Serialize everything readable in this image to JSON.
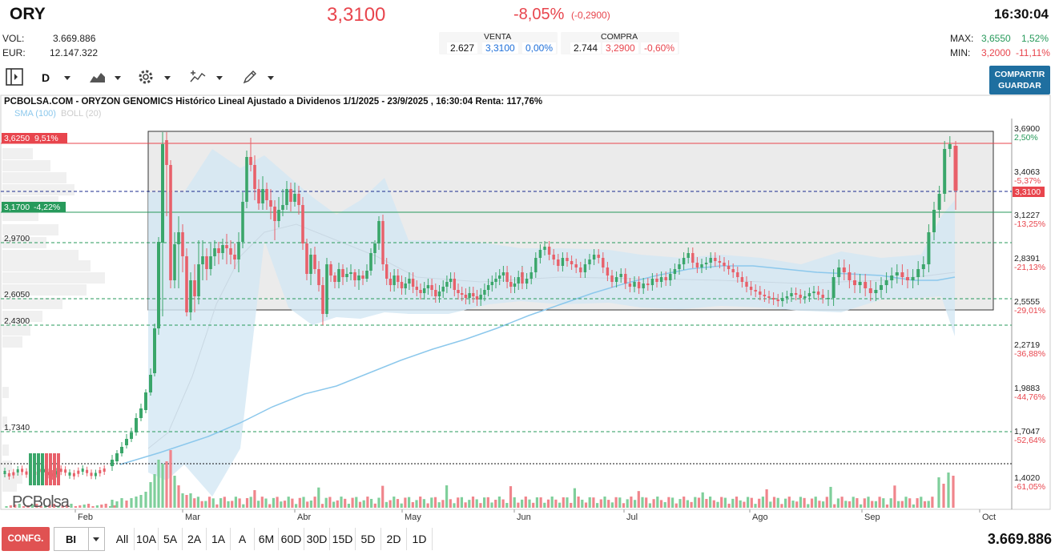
{
  "header": {
    "ticker": "ORY",
    "price": "3,3100",
    "change_pct": "-8,05%",
    "change_abs": "(-0,2900)",
    "time": "16:30:04",
    "vol_label": "VOL:",
    "vol_value": "3.669.886",
    "eur_label": "EUR:",
    "eur_value": "12.147.322",
    "max_label": "MAX:",
    "max_value": "3,6550",
    "max_pct": "1,52%",
    "min_label": "MIN:",
    "min_value": "3,2000",
    "min_pct": "-11,11%"
  },
  "quotes": {
    "venta_label": "VENTA",
    "venta_qty": "2.627",
    "venta_price": "3,3100",
    "venta_pct": "0,00%",
    "compra_label": "COMPRA",
    "compra_qty": "2.744",
    "compra_price": "3,2900",
    "compra_pct": "-0,60%"
  },
  "toolbar": {
    "period": "D",
    "share_line1": "COMPARTIR",
    "share_line2": "GUARDAR",
    "icons": [
      "panel-toggle-icon",
      "area-chart-icon",
      "gear-icon",
      "indicators-icon",
      "draw-pencil-icon"
    ]
  },
  "chart": {
    "title": "PCBOLSA.COM - ORYZON GENOMICS Histórico Lineal Ajustado a Dividenos 1/1/2025 - 23/9/2025 , 16:30:04 Renta: 117,76%",
    "legend_sma": "SMA (100)",
    "legend_boll": "BOLL (20)",
    "brand": "PCBolsa",
    "high_tag": "3,6250",
    "high_tag_pct": "9,51%",
    "low_tag": "3,1700",
    "low_tag_pct": "-4,22%",
    "left_levels": [
      "2,9700",
      "2,6050",
      "2,4300",
      "1,7340"
    ],
    "last_price_tag": "3,3100",
    "right_axis": [
      {
        "price": "3,6900",
        "pct": "2,50%"
      },
      {
        "price": "3,4063",
        "pct": "-5,37%"
      },
      {
        "price": "3,1227",
        "pct": "-13,25%"
      },
      {
        "price": "2,8391",
        "pct": "-21,13%"
      },
      {
        "price": "2,5555",
        "pct": "-29,01%"
      },
      {
        "price": "2,2719",
        "pct": "-36,88%"
      },
      {
        "price": "1,9883",
        "pct": "-44,76%"
      },
      {
        "price": "1,7047",
        "pct": "-52,64%"
      },
      {
        "price": "1,4020",
        "pct": "-61,05%"
      }
    ],
    "months": [
      "Feb",
      "Mar",
      "Abr",
      "May",
      "Jun",
      "Jul",
      "Ago",
      "Sep",
      "Oct"
    ],
    "colors": {
      "up": "#3aa66a",
      "down": "#e8606a",
      "sma": "#8cc8ec",
      "band": "#d3e7f4"
    }
  },
  "bottombar": {
    "config_label": "CONFG.",
    "bi_label": "BI",
    "periods": [
      "All",
      "10A",
      "5A",
      "2A",
      "1A",
      "A",
      "6M",
      "60D",
      "30D",
      "15D",
      "5D",
      "2D",
      "1D"
    ],
    "total_volume": "3.669.886"
  }
}
